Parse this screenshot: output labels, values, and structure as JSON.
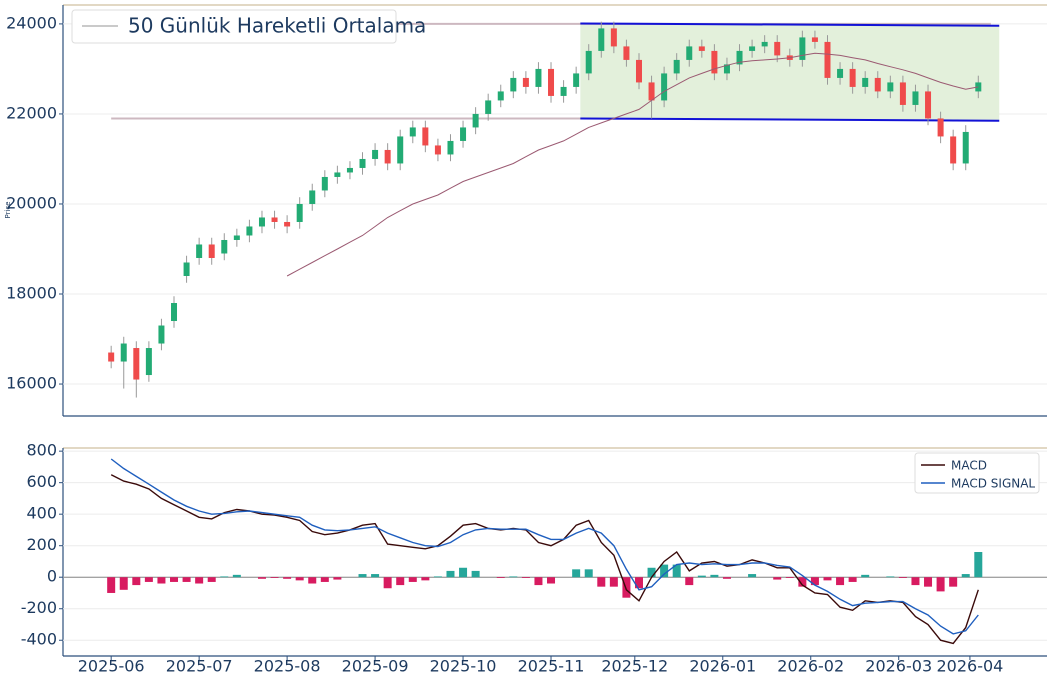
{
  "chart_data": [
    {
      "type": "candlestick",
      "ylabel": "Price",
      "x": [
        0,
        3,
        6,
        9,
        12,
        15,
        18,
        21,
        24,
        27,
        30,
        33,
        36,
        39,
        42,
        45,
        48,
        51,
        54,
        57,
        60,
        63,
        66,
        69,
        72,
        75,
        78,
        81,
        84,
        87,
        90,
        93,
        96,
        99,
        102,
        105,
        108,
        111,
        114,
        117,
        120,
        123,
        126,
        129,
        132,
        135,
        138,
        141,
        144,
        147,
        150,
        153,
        156,
        159,
        162,
        165,
        168,
        171,
        174,
        177,
        180,
        183,
        186,
        189,
        192,
        195,
        198,
        201,
        204,
        207
      ],
      "xlim": [
        -11.5,
        223.4
      ],
      "ylim": [
        15290,
        24420
      ],
      "yticks": [
        16000,
        18000,
        20000,
        22000,
        24000
      ],
      "grid": true,
      "up_color": "#22ab74",
      "down_color": "#ef4b4b",
      "open": [
        16700,
        16500,
        16800,
        16200,
        16900,
        17400,
        18400,
        18800,
        19100,
        18900,
        19200,
        19300,
        19500,
        19700,
        19600,
        19600,
        20000,
        20300,
        20600,
        20700,
        20800,
        21000,
        21200,
        20900,
        21500,
        21700,
        21300,
        21100,
        21400,
        21700,
        22000,
        22300,
        22500,
        22800,
        22600,
        23000,
        22400,
        22600,
        22900,
        23400,
        23900,
        23500,
        23200,
        22700,
        22300,
        22900,
        23200,
        23500,
        23400,
        22900,
        23100,
        23400,
        23500,
        23600,
        23300,
        23200,
        23700,
        23600,
        22800,
        23000,
        22600,
        22800,
        22500,
        22700,
        22200,
        22500,
        21900,
        21500,
        20900,
        22500
      ],
      "high": [
        16850,
        17050,
        16950,
        16950,
        17450,
        17950,
        18850,
        19250,
        19250,
        19350,
        19450,
        19650,
        19850,
        19850,
        19750,
        20150,
        20450,
        20750,
        20850,
        20950,
        21150,
        21350,
        21350,
        21650,
        21850,
        21850,
        21450,
        21550,
        21850,
        22150,
        22450,
        22650,
        22950,
        22950,
        23150,
        23150,
        22750,
        23050,
        23550,
        24050,
        24050,
        23650,
        23350,
        22850,
        23050,
        23350,
        23650,
        23650,
        23550,
        23250,
        23550,
        23650,
        23750,
        23750,
        23450,
        23850,
        23850,
        23750,
        23150,
        23150,
        22950,
        22950,
        22850,
        22850,
        22650,
        22650,
        22050,
        21650,
        21750,
        22850
      ],
      "low": [
        16350,
        15900,
        15700,
        16050,
        16750,
        17250,
        18250,
        18650,
        18650,
        18750,
        19050,
        19150,
        19350,
        19450,
        19350,
        19450,
        19850,
        20150,
        20450,
        20550,
        20650,
        20850,
        20750,
        20750,
        21350,
        21150,
        20950,
        20950,
        21250,
        21550,
        21850,
        22150,
        22350,
        22450,
        22450,
        22250,
        22250,
        22450,
        22750,
        23250,
        23350,
        23050,
        22550,
        21900,
        22150,
        22750,
        23050,
        23250,
        22750,
        22750,
        22950,
        23250,
        23350,
        23150,
        23050,
        23050,
        23450,
        22650,
        22650,
        22450,
        22450,
        22350,
        22350,
        22050,
        22050,
        21750,
        21350,
        20750,
        20750,
        22350
      ],
      "close": [
        16500,
        16900,
        16100,
        16800,
        17300,
        17800,
        18700,
        19100,
        18800,
        19200,
        19300,
        19500,
        19700,
        19600,
        19500,
        20000,
        20300,
        20600,
        20700,
        20800,
        21000,
        21200,
        20900,
        21500,
        21700,
        21300,
        21100,
        21400,
        21700,
        22000,
        22300,
        22500,
        22800,
        22600,
        23000,
        22400,
        22600,
        22900,
        23400,
        23900,
        23500,
        23200,
        22700,
        22300,
        22900,
        23200,
        23500,
        23400,
        22900,
        23100,
        23400,
        23500,
        23600,
        23300,
        23200,
        23700,
        23600,
        22800,
        23000,
        22600,
        22800,
        22500,
        22700,
        22200,
        22500,
        21900,
        21500,
        20900,
        21600,
        22700
      ],
      "series": [
        {
          "name": "50 Günlük Hareketli Ortalama",
          "color": "#9b5a72",
          "values": [
            null,
            null,
            null,
            null,
            null,
            null,
            null,
            null,
            null,
            null,
            null,
            null,
            null,
            null,
            18400,
            18550,
            18700,
            18850,
            19000,
            19150,
            19300,
            19500,
            19700,
            19850,
            20000,
            20100,
            20200,
            20350,
            20500,
            20600,
            20700,
            20800,
            20900,
            21050,
            21200,
            21300,
            21400,
            21550,
            21700,
            21800,
            21900,
            22000,
            22100,
            22300,
            22500,
            22650,
            22800,
            22900,
            23000,
            23080,
            23150,
            23180,
            23200,
            23220,
            23250,
            23300,
            23350,
            23330,
            23300,
            23250,
            23200,
            23120,
            23050,
            22980,
            22900,
            22800,
            22700,
            22620,
            22550,
            22600
          ]
        }
      ],
      "legend_color": "#b8b8b8",
      "levels": [
        {
          "value": 24000,
          "x": [
            67,
            210
          ],
          "color": "#cdb8c0"
        },
        {
          "value": 21900,
          "x": [
            0,
            113
          ],
          "color": "#cdb8c0"
        }
      ],
      "channel": {
        "x": [
          112,
          212
        ],
        "upper": [
          24010,
          23960
        ],
        "lower": [
          21900,
          21850
        ],
        "color": "#1212d6",
        "fill": "#e3f0db"
      }
    },
    {
      "type": "macd",
      "x": [
        0,
        3,
        6,
        9,
        12,
        15,
        18,
        21,
        24,
        27,
        30,
        33,
        36,
        39,
        42,
        45,
        48,
        51,
        54,
        57,
        60,
        63,
        66,
        69,
        72,
        75,
        78,
        81,
        84,
        87,
        90,
        93,
        96,
        99,
        102,
        105,
        108,
        111,
        114,
        117,
        120,
        123,
        126,
        129,
        132,
        135,
        138,
        141,
        144,
        147,
        150,
        153,
        156,
        159,
        162,
        165,
        168,
        171,
        174,
        177,
        180,
        183,
        186,
        189,
        192,
        195,
        198,
        201,
        204,
        207
      ],
      "xlim": [
        -11.5,
        223.4
      ],
      "xticks": [
        {
          "value": 0,
          "label": "2025-06"
        },
        {
          "value": 21,
          "label": "2025-07"
        },
        {
          "value": 42,
          "label": "2025-08"
        },
        {
          "value": 63,
          "label": "2025-09"
        },
        {
          "value": 84,
          "label": "2025-10"
        },
        {
          "value": 105,
          "label": "2025-11"
        },
        {
          "value": 125,
          "label": "2025-12"
        },
        {
          "value": 146,
          "label": "2026-01"
        },
        {
          "value": 167,
          "label": "2026-02"
        },
        {
          "value": 188,
          "label": "2026-03"
        },
        {
          "value": 205,
          "label": "2026-04"
        }
      ],
      "ylim": [
        -500,
        820
      ],
      "yticks": [
        -400,
        -200,
        0,
        200,
        400,
        600,
        800
      ],
      "grid": true,
      "legend": "upper right",
      "series": [
        {
          "name": "MACD",
          "color": "#3a0a0a",
          "values": [
            650,
            610,
            590,
            560,
            500,
            460,
            420,
            380,
            370,
            410,
            430,
            420,
            400,
            395,
            380,
            360,
            290,
            270,
            280,
            300,
            330,
            340,
            210,
            200,
            190,
            180,
            200,
            260,
            330,
            340,
            310,
            300,
            310,
            300,
            220,
            200,
            240,
            330,
            360,
            220,
            140,
            -80,
            -150,
            0,
            100,
            160,
            40,
            90,
            100,
            70,
            80,
            110,
            90,
            60,
            60,
            -50,
            -100,
            -110,
            -190,
            -210,
            -150,
            -160,
            -150,
            -160,
            -250,
            -300,
            -400,
            -420,
            -320,
            -80
          ]
        },
        {
          "name": "MACD SIGNAL",
          "color": "#1f5fbf",
          "values": [
            750,
            690,
            640,
            590,
            540,
            490,
            450,
            420,
            400,
            405,
            415,
            420,
            410,
            400,
            390,
            380,
            330,
            300,
            295,
            300,
            310,
            320,
            280,
            250,
            220,
            200,
            195,
            220,
            270,
            300,
            310,
            305,
            305,
            305,
            270,
            240,
            240,
            280,
            310,
            280,
            200,
            50,
            -80,
            -60,
            20,
            80,
            90,
            80,
            85,
            80,
            80,
            90,
            90,
            75,
            65,
            10,
            -50,
            -90,
            -140,
            -180,
            -165,
            -160,
            -155,
            -155,
            -200,
            -240,
            -310,
            -360,
            -340,
            -240
          ]
        }
      ],
      "histogram": {
        "values": [
          -100,
          -80,
          -50,
          -30,
          -40,
          -30,
          -30,
          -40,
          -30,
          5,
          15,
          0,
          -10,
          -5,
          -10,
          -20,
          -40,
          -30,
          -15,
          0,
          20,
          20,
          -70,
          -50,
          -30,
          -20,
          5,
          40,
          60,
          40,
          0,
          -5,
          5,
          -5,
          -50,
          -40,
          0,
          50,
          50,
          -60,
          -60,
          -130,
          -70,
          60,
          80,
          80,
          -50,
          10,
          15,
          -10,
          0,
          20,
          0,
          -15,
          -5,
          -60,
          -50,
          -20,
          -50,
          -30,
          15,
          0,
          5,
          -5,
          -50,
          -60,
          -90,
          -60,
          20,
          160
        ],
        "positive_color": "#26a69a",
        "negative_color": "#d81b60"
      }
    }
  ]
}
